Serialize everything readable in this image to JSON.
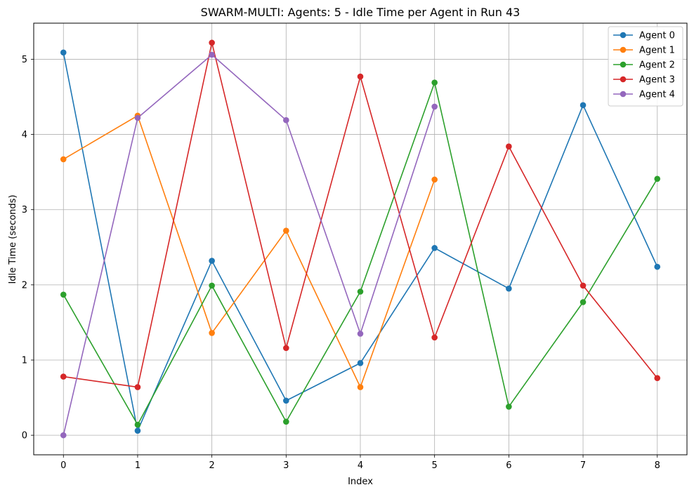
{
  "chart_data": {
    "type": "line",
    "title": "SWARM-MULTI: Agents: 5 - Idle Time per Agent in Run 43",
    "xlabel": "Index",
    "ylabel": "Idle Time (seconds)",
    "xlim": [
      -0.4,
      8.4
    ],
    "ylim": [
      -0.26,
      5.48
    ],
    "x_ticks": [
      0,
      1,
      2,
      3,
      4,
      5,
      6,
      7,
      8
    ],
    "y_ticks": [
      0,
      1,
      2,
      3,
      4,
      5
    ],
    "grid": true,
    "legend_position": "top-right",
    "series": [
      {
        "name": "Agent 0",
        "color": "#1f77b4",
        "x": [
          0,
          1,
          2,
          3,
          4,
          5,
          6,
          7,
          8
        ],
        "values": [
          5.09,
          0.06,
          2.32,
          0.46,
          0.96,
          2.49,
          1.95,
          4.39,
          2.24
        ]
      },
      {
        "name": "Agent 1",
        "color": "#ff7f0e",
        "x": [
          0,
          1,
          2,
          3,
          4,
          5
        ],
        "values": [
          3.67,
          4.25,
          1.36,
          2.72,
          0.64,
          3.4
        ]
      },
      {
        "name": "Agent 2",
        "color": "#2ca02c",
        "x": [
          0,
          1,
          2,
          3,
          4,
          5,
          6,
          7,
          8
        ],
        "values": [
          1.87,
          0.14,
          1.99,
          0.18,
          1.91,
          4.69,
          0.38,
          1.77,
          3.41
        ]
      },
      {
        "name": "Agent 3",
        "color": "#d62728",
        "x": [
          0,
          1,
          2,
          3,
          4,
          5,
          6,
          7,
          8
        ],
        "values": [
          0.78,
          0.64,
          5.22,
          1.16,
          4.77,
          1.3,
          3.84,
          1.99,
          0.76
        ]
      },
      {
        "name": "Agent 4",
        "color": "#9467bd",
        "x": [
          0,
          1,
          2,
          3,
          4,
          5
        ],
        "values": [
          0.0,
          4.22,
          5.06,
          4.19,
          1.35,
          4.37
        ]
      }
    ]
  }
}
